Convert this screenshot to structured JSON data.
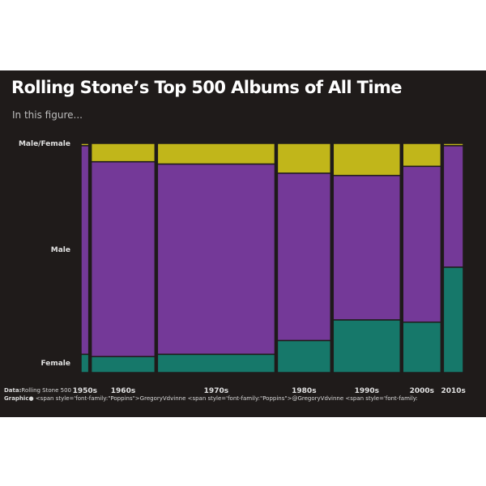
{
  "title": "Rolling Stone’s Top 500 Albums of All Time",
  "subtitle": "In this figure...",
  "caption": {
    "data_label": "Data:",
    "data_value": "Rolling Stone 500",
    "graphic_label": "Graphic",
    "graphic_value": "<span style='font-family:\"Poppins\">GregoryVdvinne <span style='font-family:\"Poppins\">@GregoryVdvinne <span style='font-family:"
  },
  "icons": [
    "github-icon",
    "twitter-icon",
    "linkedin-icon"
  ],
  "colors": {
    "background": "#1f1b1a",
    "female": "#16786a",
    "male": "#743998",
    "male_female": "#c1b61a"
  },
  "chart_data": {
    "type": "mosaic",
    "title": "Rolling Stone’s Top 500 Albums of All Time",
    "subtitle": "In this figure...",
    "categories": [
      "1950s",
      "1960s",
      "1970s",
      "1980s",
      "1990s",
      "2000s",
      "2010s"
    ],
    "column_widths": [
      0.018,
      0.147,
      0.271,
      0.123,
      0.155,
      0.088,
      0.046
    ],
    "y_levels": [
      "Female",
      "Male",
      "Male/Female"
    ],
    "series": [
      {
        "name": "Female",
        "values": [
          0.08,
          0.07,
          0.08,
          0.14,
          0.23,
          0.22,
          0.46
        ]
      },
      {
        "name": "Male",
        "values": [
          0.91,
          0.85,
          0.83,
          0.73,
          0.63,
          0.68,
          0.53
        ]
      },
      {
        "name": "Male/Female",
        "values": [
          0.01,
          0.08,
          0.09,
          0.13,
          0.14,
          0.1,
          0.01
        ]
      }
    ],
    "ylim": [
      0,
      1
    ]
  }
}
